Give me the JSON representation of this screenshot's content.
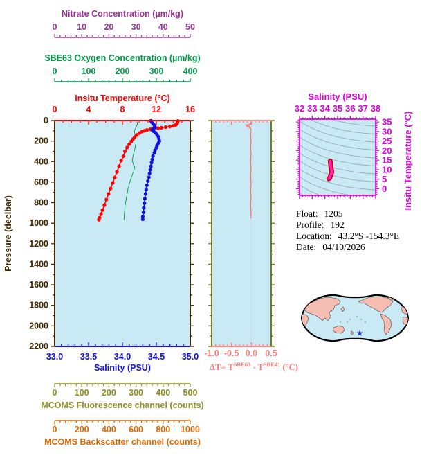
{
  "colors": {
    "nitrate": "#993399",
    "oxygen": "#009944",
    "temperature": "#FF0000",
    "salinity": "#1111DD",
    "pressure": "#402800",
    "fluorescence": "#8F8F25",
    "backscatter": "#DD6600",
    "deltaT": "#FF7878",
    "olive": "#6E6E00",
    "magenta": "#DD00DD",
    "tsLine": "#FF22CC",
    "tsOutline": "#CC0000",
    "contour": "#9AA8AC",
    "plotBg": "#C9EAF4",
    "land": "#F6BDB3",
    "mapOutline": "#000000",
    "star": "#2233CC",
    "zeroLine": "#B8B8B8",
    "infoText": "#000000"
  },
  "chart_data": [
    {
      "id": "profile-plot",
      "type": "line",
      "y_axis": {
        "title": "Pressure (decibar)",
        "range": [
          0,
          2200
        ],
        "major": 200,
        "minor": 100,
        "tick_labels": [
          "0",
          "200",
          "400",
          "600",
          "800",
          "1000",
          "1200",
          "1400",
          "1600",
          "1800",
          "2000",
          "2200"
        ],
        "color_key": "pressure",
        "inverted": true
      },
      "x_axes": [
        {
          "key": "nitrate",
          "title": "Nitrate Concentration (µm/kg)",
          "range": [
            0,
            50
          ],
          "major": 10,
          "minor": 2,
          "tick_labels": [
            "0",
            "10",
            "20",
            "30",
            "40",
            "50"
          ],
          "color_key": "nitrate",
          "slot": "detached-top-1"
        },
        {
          "key": "oxygen",
          "title": "SBE63 Oxygen Concentration (µm/kg)",
          "range": [
            0,
            400
          ],
          "major": 100,
          "minor": 20,
          "tick_labels": [
            "0",
            "100",
            "200",
            "300",
            "400"
          ],
          "color_key": "oxygen",
          "slot": "detached-top-2"
        },
        {
          "key": "temperature",
          "title": "Insitu Temperature (°C)",
          "range": [
            0,
            16
          ],
          "major": 4,
          "minor": 1,
          "tick_labels": [
            "0",
            "4",
            "8",
            "12",
            "16"
          ],
          "color_key": "temperature",
          "slot": "top"
        },
        {
          "key": "salinity",
          "title": "Salinity (PSU)",
          "range": [
            33,
            35
          ],
          "major": 0.5,
          "minor": 0.1,
          "tick_labels": [
            "33.0",
            "33.5",
            "34.0",
            "34.5",
            "35.0"
          ],
          "color_key": "salinity",
          "slot": "bottom"
        },
        {
          "key": "fluorescence",
          "title": "MCOMS Fluorescence channel (counts)",
          "range": [
            0,
            500
          ],
          "major": 100,
          "minor": 20,
          "tick_labels": [
            "0",
            "100",
            "200",
            "300",
            "400",
            "500"
          ],
          "color_key": "fluorescence",
          "slot": "detached-bottom-1"
        },
        {
          "key": "backscatter",
          "title": "MCOMS Backscatter channel (counts)",
          "range": [
            0,
            1000
          ],
          "major": 200,
          "minor": 40,
          "tick_labels": [
            "0",
            "200",
            "400",
            "600",
            "800",
            "1000"
          ],
          "color_key": "backscatter",
          "slot": "detached-bottom-2"
        }
      ],
      "series": [
        {
          "name": "Insitu Temperature",
          "x_axis": "temperature",
          "color_key": "temperature",
          "marker": true,
          "points": [
            [
              14.55,
              4
            ],
            [
              14.5,
              18
            ],
            [
              14.45,
              30
            ],
            [
              14.3,
              42
            ],
            [
              14.0,
              52
            ],
            [
              13.6,
              58
            ],
            [
              13.1,
              64
            ],
            [
              12.6,
              70
            ],
            [
              12.2,
              76
            ],
            [
              11.7,
              80
            ],
            [
              11.3,
              85
            ],
            [
              10.9,
              92
            ],
            [
              10.6,
              99
            ],
            [
              10.3,
              108
            ],
            [
              10.0,
              122
            ],
            [
              9.7,
              140
            ],
            [
              9.45,
              160
            ],
            [
              9.25,
              180
            ],
            [
              9.05,
              202
            ],
            [
              8.8,
              230
            ],
            [
              8.55,
              262
            ],
            [
              8.3,
              300
            ],
            [
              8.1,
              348
            ],
            [
              7.85,
              390
            ],
            [
              7.6,
              445
            ],
            [
              7.35,
              500
            ],
            [
              7.1,
              554
            ],
            [
              6.85,
              608
            ],
            [
              6.6,
              662
            ],
            [
              6.35,
              716
            ],
            [
              6.1,
              770
            ],
            [
              5.87,
              824
            ],
            [
              5.65,
              872
            ],
            [
              5.47,
              912
            ],
            [
              5.3,
              946
            ],
            [
              5.22,
              966
            ]
          ]
        },
        {
          "name": "Salinity",
          "x_axis": "salinity",
          "color_key": "salinity",
          "marker": true,
          "points": [
            [
              34.42,
              2
            ],
            [
              34.43,
              15
            ],
            [
              34.45,
              30
            ],
            [
              34.47,
              45
            ],
            [
              34.48,
              60
            ],
            [
              34.47,
              72
            ],
            [
              34.45,
              82
            ],
            [
              34.44,
              92
            ],
            [
              34.46,
              105
            ],
            [
              34.49,
              120
            ],
            [
              34.51,
              138
            ],
            [
              34.53,
              158
            ],
            [
              34.54,
              180
            ],
            [
              34.545,
              200
            ],
            [
              34.53,
              220
            ],
            [
              34.51,
              242
            ],
            [
              34.5,
              265
            ],
            [
              34.48,
              290
            ],
            [
              34.47,
              315
            ],
            [
              34.45,
              345
            ],
            [
              34.44,
              378
            ],
            [
              34.43,
              410
            ],
            [
              34.42,
              445
            ],
            [
              34.41,
              480
            ],
            [
              34.4,
              515
            ],
            [
              34.39,
              552
            ],
            [
              34.375,
              590
            ],
            [
              34.36,
              630
            ],
            [
              34.35,
              672
            ],
            [
              34.34,
              715
            ],
            [
              34.33,
              760
            ],
            [
              34.325,
              805
            ],
            [
              34.315,
              850
            ],
            [
              34.31,
              895
            ],
            [
              34.3,
              935
            ],
            [
              34.3,
              962
            ]
          ]
        },
        {
          "name": "SBE63 Oxygen",
          "x_axis": "oxygen",
          "color_key": "oxygen",
          "marker": false,
          "points": [
            [
              243,
              10
            ],
            [
              244,
              35
            ],
            [
              241,
              60
            ],
            [
              237,
              85
            ],
            [
              235,
              110
            ],
            [
              237,
              140
            ],
            [
              239,
              170
            ],
            [
              240,
              200
            ],
            [
              239,
              235
            ],
            [
              237,
              270
            ],
            [
              234,
              310
            ],
            [
              231,
              350
            ],
            [
              229,
              390
            ],
            [
              232,
              425
            ],
            [
              236,
              455
            ],
            [
              234,
              485
            ],
            [
              230,
              520
            ],
            [
              226,
              558
            ],
            [
              222,
              596
            ],
            [
              219,
              634
            ],
            [
              216,
              672
            ],
            [
              214,
              710
            ],
            [
              212,
              748
            ],
            [
              210,
              786
            ],
            [
              208,
              824
            ],
            [
              207,
              862
            ],
            [
              206,
              900
            ],
            [
              205,
              938
            ],
            [
              205,
              968
            ]
          ]
        }
      ]
    },
    {
      "id": "delta-t-plot",
      "type": "line",
      "x_axis": {
        "title_parts": {
          "prefix": "ΔT= T",
          "sup1": "SBE63",
          "mid": " - T",
          "sup2": "SBE41",
          "suffix": " (°C)"
        },
        "range": [
          -1.0,
          0.5
        ],
        "major": 0.5,
        "minor": 0.1,
        "tick_labels": [
          "-1.0",
          "-0.5",
          "0.0",
          "0.5"
        ],
        "color_key": "deltaT"
      },
      "y_axis": {
        "range": [
          0,
          2200
        ],
        "major": 200,
        "minor": 100,
        "color_key": "olive",
        "inverted": true
      },
      "zero_line": 0.0,
      "series": [
        {
          "name": "Delta T",
          "color_key": "deltaT",
          "marker": false,
          "points": [
            [
              0.0,
              2
            ],
            [
              -0.01,
              20
            ],
            [
              -0.02,
              35
            ],
            [
              -0.14,
              45
            ],
            [
              -0.05,
              52
            ],
            [
              -0.11,
              60
            ],
            [
              -0.03,
              70
            ],
            [
              -0.01,
              85
            ],
            [
              -0.02,
              130
            ],
            [
              -0.01,
              190
            ],
            [
              -0.02,
              260
            ],
            [
              -0.01,
              330
            ],
            [
              -0.02,
              400
            ],
            [
              -0.01,
              470
            ],
            [
              -0.02,
              540
            ],
            [
              -0.01,
              610
            ],
            [
              -0.02,
              680
            ],
            [
              -0.01,
              750
            ],
            [
              -0.02,
              820
            ],
            [
              -0.01,
              890
            ],
            [
              -0.015,
              950
            ]
          ]
        }
      ]
    },
    {
      "id": "ts-diagram",
      "type": "line",
      "x_axis": {
        "title": "Salinity (PSU)",
        "range": [
          32,
          38
        ],
        "major": 1,
        "minor": 0.25,
        "tick_labels": [
          "32",
          "33",
          "34",
          "35",
          "36",
          "37",
          "38"
        ],
        "color_key": "magenta"
      },
      "y_axis": {
        "title": "Insitu Temperature (°C)",
        "range": [
          -3.5,
          36.5
        ],
        "major": 5,
        "minor": 1,
        "tick_labels": [
          "0",
          "5",
          "10",
          "15",
          "20",
          "25",
          "30",
          "35"
        ],
        "color_key": "magenta"
      },
      "contours": {
        "color_key": "contour",
        "count": 14
      },
      "series": [
        {
          "name": "T-S profile",
          "color_key": "tsLine",
          "outline_color_key": "tsOutline",
          "points": [
            [
              34.42,
              14.5
            ],
            [
              34.43,
              13.6
            ],
            [
              34.45,
              12.6
            ],
            [
              34.47,
              11.6
            ],
            [
              34.49,
              10.7
            ],
            [
              34.51,
              9.9
            ],
            [
              34.53,
              9.3
            ],
            [
              34.54,
              8.8
            ],
            [
              34.53,
              8.4
            ],
            [
              34.51,
              8.0
            ],
            [
              34.48,
              7.5
            ],
            [
              34.46,
              7.1
            ],
            [
              34.44,
              6.7
            ],
            [
              34.42,
              6.3
            ],
            [
              34.4,
              5.9
            ],
            [
              34.37,
              5.6
            ],
            [
              34.35,
              5.4
            ],
            [
              34.32,
              5.3
            ],
            [
              34.3,
              5.2
            ]
          ]
        }
      ]
    }
  ],
  "info": {
    "lines": [
      {
        "label": "Float:",
        "value": "1205"
      },
      {
        "label": "Profile:",
        "value": "192"
      },
      {
        "label": "Location:",
        "value": "43.2°S -154.3°E"
      },
      {
        "label": "Date:",
        "value": "04/10/2026"
      }
    ]
  },
  "map": {
    "marker": "star",
    "ocean_key": "plotBg",
    "land_key": "land",
    "outline_key": "mapOutline",
    "star_key": "star"
  }
}
